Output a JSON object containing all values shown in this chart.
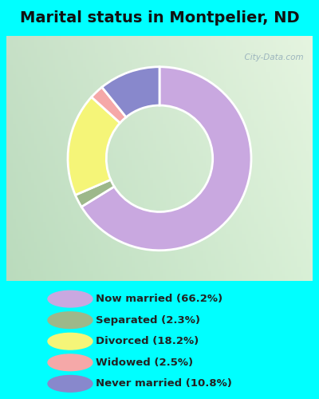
{
  "title": "Marital status in Montpelier, ND",
  "title_fontsize": 14,
  "slices": [
    66.2,
    2.3,
    18.2,
    2.5,
    10.8
  ],
  "labels": [
    "Now married (66.2%)",
    "Separated (2.3%)",
    "Divorced (18.2%)",
    "Widowed (2.5%)",
    "Never married (10.8%)"
  ],
  "colors": [
    "#C9A8E0",
    "#9DB88A",
    "#F5F578",
    "#F5A8A8",
    "#8888CC"
  ],
  "bg_cyan": "#00FFFF",
  "bg_chart_color1": "#C8E8C8",
  "bg_chart_color2": "#E8F5E8",
  "watermark": "  City-Data.com",
  "donut_width": 0.42,
  "start_angle": 90
}
